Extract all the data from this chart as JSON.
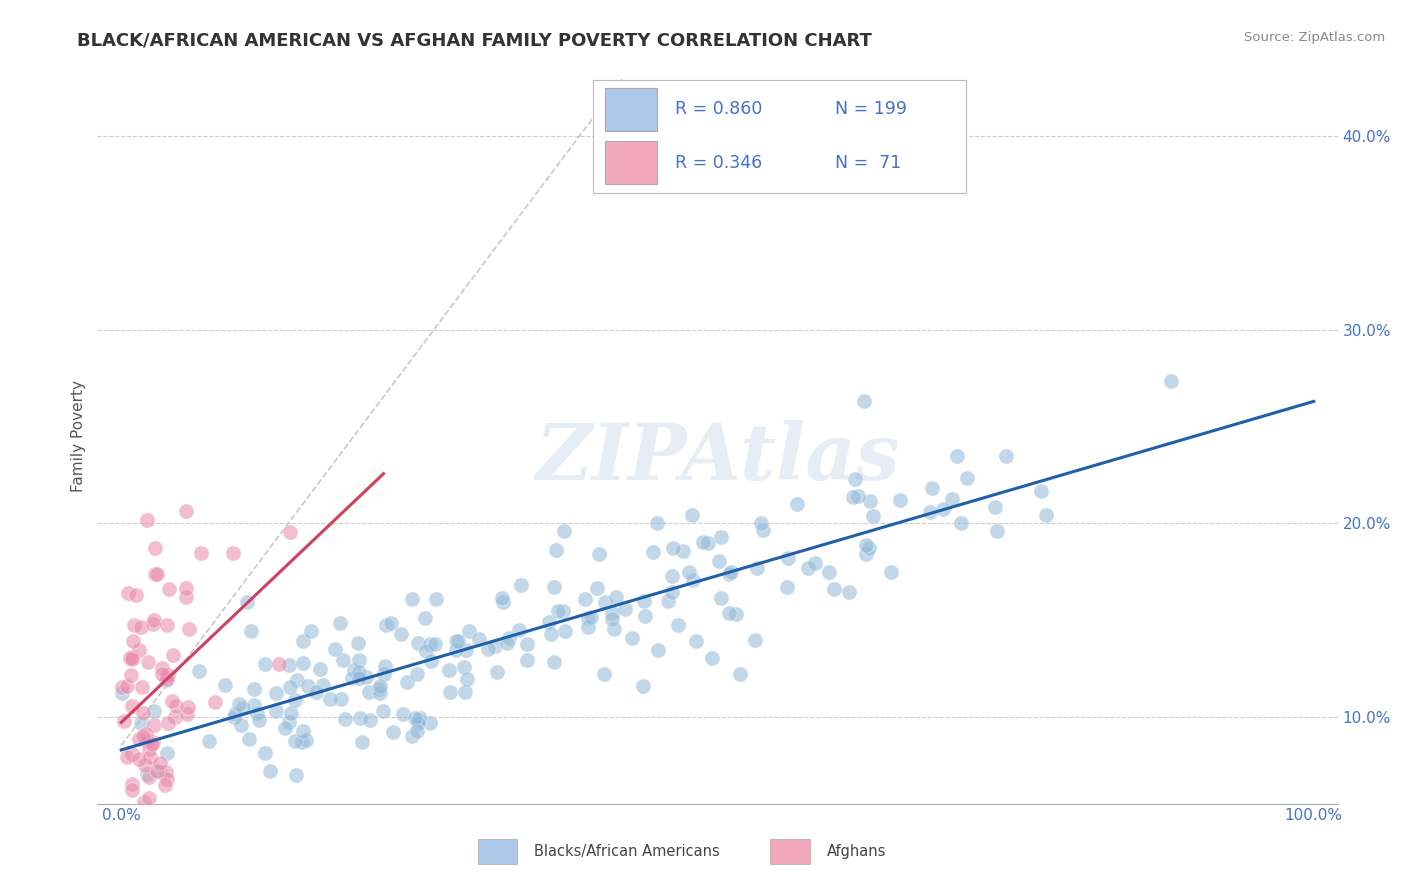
{
  "title": "BLACK/AFRICAN AMERICAN VS AFGHAN FAMILY POVERTY CORRELATION CHART",
  "source": "Source: ZipAtlas.com",
  "xlabel": "",
  "ylabel": "Family Poverty",
  "xlim": [
    -0.02,
    1.02
  ],
  "ylim": [
    0.055,
    0.435
  ],
  "xtick_pos": [
    0.0,
    1.0
  ],
  "xtick_labels": [
    "0.0%",
    "100.0%"
  ],
  "yticks": [
    0.1,
    0.2,
    0.3,
    0.4
  ],
  "ytick_labels": [
    "10.0%",
    "20.0%",
    "30.0%",
    "40.0%"
  ],
  "legend1_R": "0.860",
  "legend1_N": "199",
  "legend2_R": "0.346",
  "legend2_N": " 71",
  "blue_legend_color": "#adc8e8",
  "pink_legend_color": "#f4a8be",
  "blue_line_color": "#2060a8",
  "pink_line_color": "#d04060",
  "blue_dot_color": "#90b8d8",
  "pink_dot_color": "#e888a8",
  "watermark": "ZIPAtlas",
  "blue_N": 199,
  "pink_N": 71,
  "grid_color": "#cccccc",
  "background_color": "#ffffff",
  "ref_line_color": "#c8c8c8",
  "title_color": "#333333",
  "source_color": "#888888",
  "axis_label_color": "#555555",
  "ytick_color": "#4472c4",
  "xtick_color": "#4472c4",
  "legend_text_color": "#4472c4"
}
